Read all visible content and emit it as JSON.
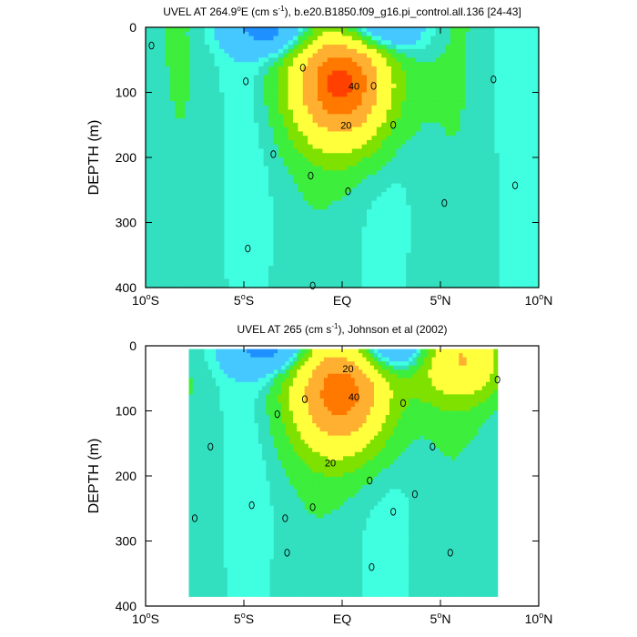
{
  "chart_data": [
    {
      "type": "contour",
      "title": "UVEL AT 264.9°E (cm s⁻¹), b.e20.B1850.f09_g16.pi_control.all.136 [24-43]",
      "title_parts": {
        "pre": "UVEL AT 264.9",
        "deg": "o",
        "post1": "E (cm s",
        "sup": "-1",
        "post2": "), b.e20.B1850.f09_g16.pi_control.all.136 [24-43]"
      },
      "xlabel": "",
      "ylabel": "DEPTH (m)",
      "xlim": [
        -10,
        10
      ],
      "ylim": [
        400,
        0
      ],
      "x_ticks": [
        {
          "value": -10,
          "num": "10",
          "deg": "o",
          "hem": "S"
        },
        {
          "value": -5,
          "num": "5",
          "deg": "o",
          "hem": "S"
        },
        {
          "value": 0,
          "num": "EQ",
          "deg": "",
          "hem": ""
        },
        {
          "value": 5,
          "num": "5",
          "deg": "o",
          "hem": "N"
        },
        {
          "value": 10,
          "num": "10",
          "deg": "o",
          "hem": "N"
        }
      ],
      "y_ticks": [
        0,
        100,
        200,
        300,
        400
      ],
      "data_extent": {
        "x": [
          -10,
          10
        ],
        "y": [
          0,
          400
        ]
      },
      "cores": [
        {
          "kind": "eastward",
          "x": 0.0,
          "y": 85,
          "peak": 80
        },
        {
          "kind": "westward",
          "x": -3.5,
          "y": 5,
          "peak": -30
        },
        {
          "kind": "westward",
          "x": 1.5,
          "y": 5,
          "peak": -30
        }
      ],
      "contour_labels": [
        {
          "text": "40",
          "x": 0.6,
          "y": 90
        },
        {
          "text": "20",
          "x": 0.2,
          "y": 150
        },
        {
          "text": "0",
          "x": -9.7,
          "y": 28
        },
        {
          "text": "0",
          "x": -4.9,
          "y": 83
        },
        {
          "text": "0",
          "x": -3.5,
          "y": 195
        },
        {
          "text": "0",
          "x": -2.0,
          "y": 62
        },
        {
          "text": "0",
          "x": -1.6,
          "y": 228
        },
        {
          "text": "0",
          "x": 1.6,
          "y": 90
        },
        {
          "text": "0",
          "x": 0.3,
          "y": 252
        },
        {
          "text": "0",
          "x": 2.6,
          "y": 150
        },
        {
          "text": "0",
          "x": 5.2,
          "y": 270
        },
        {
          "text": "0",
          "x": 7.7,
          "y": 80
        },
        {
          "text": "0",
          "x": 8.8,
          "y": 243
        },
        {
          "text": "0",
          "x": -4.8,
          "y": 340
        },
        {
          "text": "0",
          "x": -1.5,
          "y": 397
        }
      ]
    },
    {
      "type": "contour",
      "title": "UVEL AT 265 (cm s⁻¹), Johnson et al (2002)",
      "title_parts": {
        "pre": "UVEL AT 265",
        "deg": "",
        "post1": " (cm s",
        "sup": "-1",
        "post2": "), Johnson et al (2002)"
      },
      "xlabel": "",
      "ylabel": "DEPTH (m)",
      "xlim": [
        -10,
        10
      ],
      "ylim": [
        400,
        0
      ],
      "x_ticks": [
        {
          "value": -10,
          "num": "10",
          "deg": "o",
          "hem": "S"
        },
        {
          "value": -5,
          "num": "5",
          "deg": "o",
          "hem": "S"
        },
        {
          "value": 0,
          "num": "EQ",
          "deg": "",
          "hem": ""
        },
        {
          "value": 5,
          "num": "5",
          "deg": "o",
          "hem": "N"
        },
        {
          "value": 10,
          "num": "10",
          "deg": "o",
          "hem": "N"
        }
      ],
      "y_ticks": [
        0,
        100,
        200,
        300,
        400
      ],
      "data_extent": {
        "x": [
          -7.8,
          7.9
        ],
        "y": [
          5,
          385
        ]
      },
      "cores": [
        {
          "kind": "eastward",
          "x": 0.0,
          "y": 70,
          "peak": 70
        },
        {
          "kind": "eastward",
          "x": 6.0,
          "y": 20,
          "peak": 40
        },
        {
          "kind": "westward",
          "x": -3.5,
          "y": 5,
          "peak": -30
        },
        {
          "kind": "westward",
          "x": 2.5,
          "y": 5,
          "peak": -30
        }
      ],
      "contour_labels": [
        {
          "text": "20",
          "x": 0.3,
          "y": 35
        },
        {
          "text": "40",
          "x": 0.6,
          "y": 78
        },
        {
          "text": "20",
          "x": -0.6,
          "y": 180
        },
        {
          "text": "0",
          "x": -7.5,
          "y": 265
        },
        {
          "text": "0",
          "x": -6.7,
          "y": 155
        },
        {
          "text": "0",
          "x": -3.3,
          "y": 105
        },
        {
          "text": "0",
          "x": -1.9,
          "y": 82
        },
        {
          "text": "0",
          "x": -4.6,
          "y": 245
        },
        {
          "text": "0",
          "x": -2.9,
          "y": 265
        },
        {
          "text": "0",
          "x": -1.5,
          "y": 248
        },
        {
          "text": "0",
          "x": -2.8,
          "y": 318
        },
        {
          "text": "0",
          "x": 1.4,
          "y": 207
        },
        {
          "text": "0",
          "x": 1.5,
          "y": 340
        },
        {
          "text": "0",
          "x": 3.1,
          "y": 88
        },
        {
          "text": "0",
          "x": 2.6,
          "y": 255
        },
        {
          "text": "0",
          "x": 3.7,
          "y": 228
        },
        {
          "text": "0",
          "x": 4.6,
          "y": 155
        },
        {
          "text": "0",
          "x": 5.5,
          "y": 318
        },
        {
          "text": "0",
          "x": 7.9,
          "y": 52
        }
      ]
    }
  ],
  "colors": {
    "strong_west": "#1e90ff",
    "west": "#44c8ff",
    "weak_west": "#40ffe0",
    "near_zero": "#32e0c0",
    "weak_east": "#3dee3d",
    "east": "#7ee100",
    "mid_east": "#ffff3c",
    "strong_east": "#ffb030",
    "core_east": "#ff7800",
    "peak_east": "#ff4000",
    "contour_line": "#000000",
    "frame": "#000000"
  }
}
